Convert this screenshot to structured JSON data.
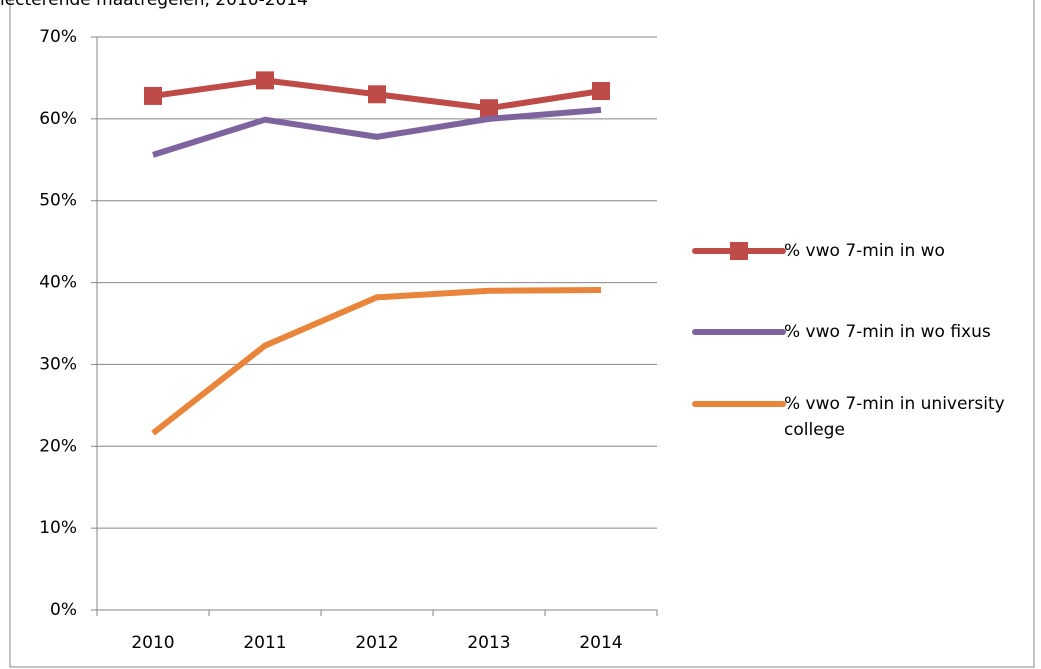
{
  "chart_data": {
    "type": "line",
    "title": "lecterende maatregelen, 2010-2014",
    "categories": [
      "2010",
      "2011",
      "2012",
      "2013",
      "2014"
    ],
    "series": [
      {
        "name": "% vwo 7-min in wo",
        "color": "#be4b48",
        "marker": "square",
        "values": [
          62.8,
          64.7,
          63.0,
          61.3,
          63.4
        ]
      },
      {
        "name": "% vwo 7-min in wo fixus",
        "color": "#7e649e",
        "marker": "none",
        "values": [
          55.6,
          59.9,
          57.8,
          60.0,
          61.1
        ]
      },
      {
        "name": "% vwo 7-min in university college",
        "color": "#e8853a",
        "marker": "none",
        "values": [
          21.6,
          32.3,
          38.2,
          39.0,
          39.1
        ]
      }
    ],
    "ylim": [
      0,
      70
    ],
    "yticks": [
      {
        "value": 0,
        "label": "0%"
      },
      {
        "value": 10,
        "label": "10%"
      },
      {
        "value": 20,
        "label": "20%"
      },
      {
        "value": 30,
        "label": "30%"
      },
      {
        "value": 40,
        "label": "40%"
      },
      {
        "value": 50,
        "label": "50%"
      },
      {
        "value": 60,
        "label": "60%"
      },
      {
        "value": 70,
        "label": "70%"
      }
    ],
    "grid": true,
    "legend": "right"
  }
}
